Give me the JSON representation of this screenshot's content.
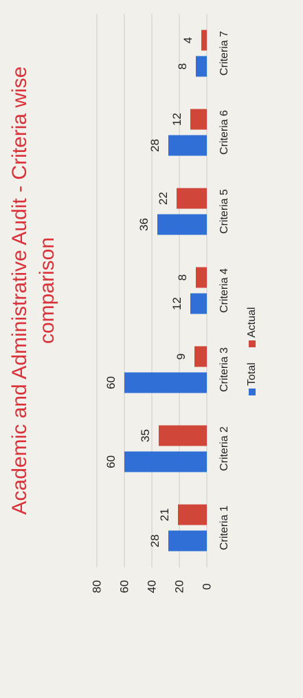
{
  "chart_data": {
    "type": "bar",
    "title": "Academic and Administrative Audit - Criteria wise comparison",
    "title_lines": [
      "Academic and Administrative Audit - Criteria wise",
      "comparison"
    ],
    "categories": [
      "Criteria 1",
      "Criteria 2",
      "Criteria 3",
      "Criteria 4",
      "Criteria 5",
      "Criteria 6",
      "Criteria 7"
    ],
    "series": [
      {
        "name": "Total",
        "color": "#2f6fd6",
        "values": [
          28,
          60,
          60,
          12,
          36,
          28,
          8
        ]
      },
      {
        "name": "Actual",
        "color": "#d0473a",
        "values": [
          21,
          35,
          9,
          8,
          22,
          12,
          4
        ]
      }
    ],
    "y_ticks": [
      "0",
      "20",
      "40",
      "60",
      "80"
    ],
    "ylim": [
      0,
      80
    ],
    "grid": true,
    "legend": "bottom",
    "orientation": "rotated-90"
  }
}
